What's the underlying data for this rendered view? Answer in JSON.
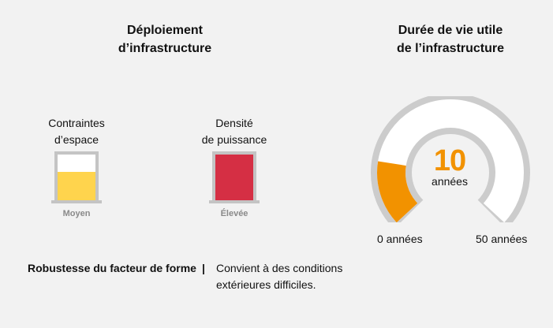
{
  "left_title": {
    "line1": "Déploiement",
    "line2": "d’infrastructure"
  },
  "right_title": {
    "line1": "Durée de vie utile",
    "line2": "de l’infrastructure"
  },
  "meters": [
    {
      "label_line1": "Contraintes",
      "label_line2": "d’espace",
      "level": "Moyen",
      "fill_fraction": 0.62,
      "color": "#ffd44d"
    },
    {
      "label_line1": "Densité",
      "label_line2": "de puissance",
      "level": "Élevée",
      "fill_fraction": 1.0,
      "color": "#d52f44"
    }
  ],
  "robustness": {
    "key": "Robustesse du facteur de forme",
    "separator": "|",
    "value_line1": "Convient à des conditions",
    "value_line2": "extérieures difficiles."
  },
  "gauge": {
    "value": "10",
    "unit": "années",
    "min_label": "0 années",
    "max_label": "50 années",
    "min": 0,
    "max": 50,
    "current": 10,
    "fill_color": "#f29200",
    "track_color": "#cccccc"
  }
}
